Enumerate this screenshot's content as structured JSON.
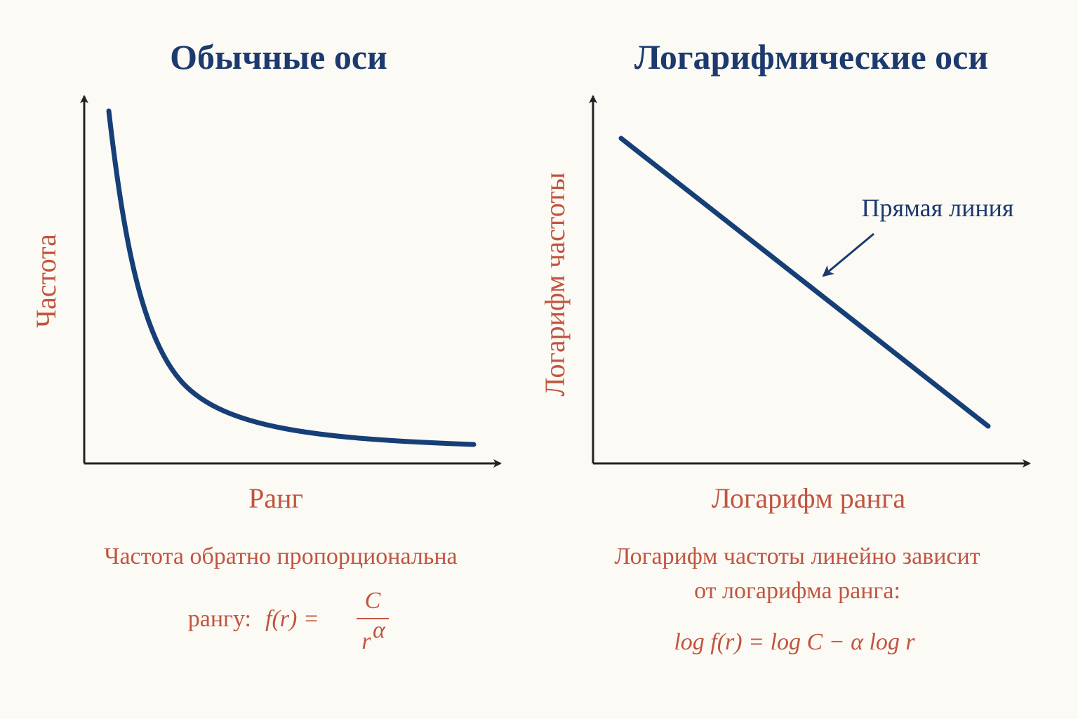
{
  "panels": [
    {
      "title": "Обычные оси",
      "y_label": "Частота",
      "x_label": "Ранг",
      "caption_lines": [
        "Частота обратно пропорциональна"
      ],
      "formula": {
        "prefix": "рангу:",
        "lhs": "f(r) =",
        "numerator": "C",
        "denominator": "r",
        "exponent": "α"
      }
    },
    {
      "title": "Логарифмические оси",
      "y_label": "Логарифм частоты",
      "x_label": "Логарифм ранга",
      "annotation": "Прямая линия",
      "caption_lines": [
        "Логарифм частоты линейно зависит",
        "от логарифма ранга:"
      ],
      "formula": {
        "expression": "log f(r) = log C − α log r"
      }
    }
  ]
}
